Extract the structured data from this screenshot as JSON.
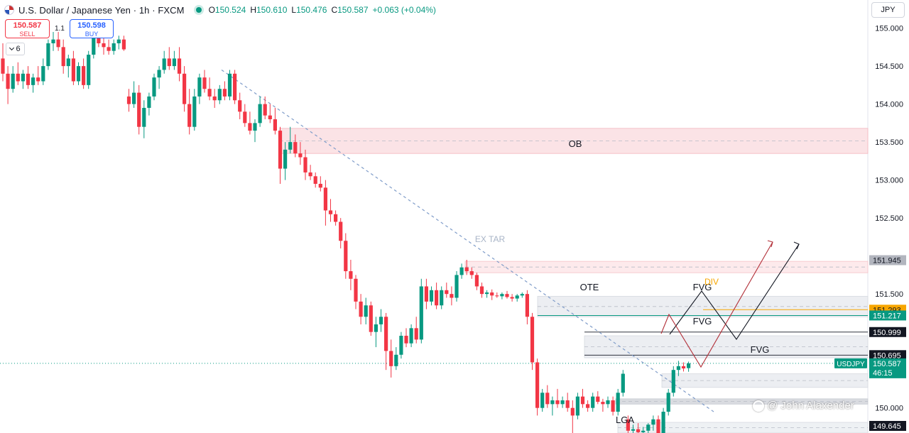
{
  "header": {
    "symbol": "U.S. Dollar / Japanese Yen · 1h · FXCM",
    "open_label": "O",
    "open": "150.524",
    "high_label": "H",
    "high": "150.610",
    "low_label": "L",
    "low": "150.476",
    "close_label": "C",
    "close": "150.587",
    "change": "+0.063 (+0.04%)"
  },
  "trade": {
    "sell_price": "150.587",
    "sell_label": "SELL",
    "buy_price": "150.598",
    "buy_label": "BUY",
    "spread": "1.1"
  },
  "indicators_count": "6",
  "currency": "JPY",
  "watermark": "@ John Alaxender",
  "colors": {
    "up": "#089981",
    "down": "#f23645",
    "trendline": "#7f9cc9",
    "ob_zone": "#fbe3e6",
    "fvg_zone": "#eceef2",
    "price_current": "#089981"
  },
  "chart_data": {
    "type": "candlestick",
    "title": "U.S. Dollar / Japanese Yen · 1h · FXCM",
    "ylim": [
      149.67,
      155.37
    ],
    "y_ticks": [
      "155.000",
      "154.500",
      "154.000",
      "153.500",
      "153.000",
      "152.500",
      "151.500",
      "150.000"
    ],
    "candles": [
      [
        154.6,
        154.8,
        154.3,
        154.4
      ],
      [
        154.4,
        154.5,
        154.0,
        154.2
      ],
      [
        154.2,
        154.5,
        154.15,
        154.4
      ],
      [
        154.4,
        154.55,
        154.25,
        154.3
      ],
      [
        154.3,
        154.45,
        154.2,
        154.4
      ],
      [
        154.4,
        154.5,
        154.2,
        154.25
      ],
      [
        154.25,
        154.4,
        154.15,
        154.35
      ],
      [
        154.35,
        154.5,
        154.25,
        154.3
      ],
      [
        154.3,
        154.6,
        154.25,
        154.5
      ],
      [
        154.5,
        154.85,
        154.45,
        154.8
      ],
      [
        154.8,
        154.95,
        154.7,
        154.85
      ],
      [
        154.85,
        154.95,
        154.7,
        154.75
      ],
      [
        154.75,
        154.85,
        154.4,
        154.5
      ],
      [
        154.5,
        154.65,
        154.35,
        154.6
      ],
      [
        154.6,
        154.7,
        154.25,
        154.3
      ],
      [
        154.3,
        154.55,
        154.25,
        154.5
      ],
      [
        154.5,
        154.6,
        154.2,
        154.25
      ],
      [
        154.25,
        154.7,
        154.2,
        154.65
      ],
      [
        154.65,
        155.05,
        154.6,
        154.95
      ],
      [
        154.95,
        155.0,
        154.75,
        154.8
      ],
      [
        154.8,
        154.9,
        154.65,
        154.75
      ],
      [
        154.75,
        154.85,
        154.65,
        154.7
      ],
      [
        154.7,
        154.85,
        154.65,
        154.8
      ],
      [
        154.8,
        154.9,
        154.72,
        154.85
      ],
      [
        154.85,
        154.9,
        154.7,
        154.72
      ],
      [
        154.1,
        154.2,
        153.9,
        154.0
      ],
      [
        154.0,
        154.3,
        153.95,
        154.15
      ],
      [
        154.15,
        154.25,
        153.6,
        153.7
      ],
      [
        153.7,
        154.05,
        153.55,
        153.95
      ],
      [
        153.95,
        154.15,
        153.85,
        154.1
      ],
      [
        154.1,
        154.4,
        154.05,
        154.35
      ],
      [
        154.35,
        154.5,
        154.2,
        154.45
      ],
      [
        154.45,
        154.7,
        154.4,
        154.6
      ],
      [
        154.6,
        154.75,
        154.45,
        154.5
      ],
      [
        154.5,
        154.7,
        154.45,
        154.6
      ],
      [
        154.6,
        154.75,
        154.3,
        154.4
      ],
      [
        154.4,
        154.5,
        153.9,
        154.0
      ],
      [
        154.0,
        154.2,
        153.6,
        153.7
      ],
      [
        153.7,
        154.2,
        153.65,
        154.1
      ],
      [
        154.1,
        154.4,
        154.0,
        154.35
      ],
      [
        154.35,
        154.45,
        154.15,
        154.2
      ],
      [
        154.2,
        154.35,
        154.05,
        154.1
      ],
      [
        154.1,
        154.2,
        153.95,
        154.05
      ],
      [
        154.05,
        154.25,
        154.0,
        154.2
      ],
      [
        154.2,
        154.3,
        154.05,
        154.1
      ],
      [
        154.1,
        154.45,
        154.05,
        154.4
      ],
      [
        154.4,
        154.45,
        154.0,
        154.05
      ],
      [
        154.05,
        154.15,
        153.8,
        153.9
      ],
      [
        153.9,
        154.0,
        153.7,
        153.75
      ],
      [
        153.75,
        153.9,
        153.6,
        153.65
      ],
      [
        153.65,
        153.8,
        153.5,
        153.75
      ],
      [
        153.75,
        154.1,
        153.7,
        154.0
      ],
      [
        154.0,
        154.1,
        153.8,
        153.85
      ],
      [
        153.85,
        154.0,
        153.75,
        153.8
      ],
      [
        153.8,
        153.95,
        153.6,
        153.65
      ],
      [
        153.65,
        153.7,
        152.95,
        153.15
      ],
      [
        153.15,
        153.5,
        153.0,
        153.4
      ],
      [
        153.4,
        153.7,
        153.35,
        153.5
      ],
      [
        153.5,
        153.6,
        153.3,
        153.35
      ],
      [
        153.35,
        153.5,
        153.2,
        153.3
      ],
      [
        153.3,
        153.4,
        153.0,
        153.1
      ],
      [
        153.1,
        153.2,
        153.0,
        153.05
      ],
      [
        153.05,
        153.1,
        152.9,
        152.95
      ],
      [
        152.95,
        153.05,
        152.85,
        152.9
      ],
      [
        152.9,
        153.0,
        152.4,
        152.6
      ],
      [
        152.6,
        152.75,
        152.45,
        152.55
      ],
      [
        152.55,
        152.6,
        152.4,
        152.45
      ],
      [
        152.45,
        152.5,
        152.1,
        152.2
      ],
      [
        152.2,
        152.3,
        151.7,
        151.8
      ],
      [
        151.8,
        151.95,
        151.55,
        151.7
      ],
      [
        151.7,
        151.75,
        151.3,
        151.4
      ],
      [
        151.4,
        151.5,
        151.1,
        151.2
      ],
      [
        151.2,
        151.45,
        151.1,
        151.35
      ],
      [
        151.35,
        151.4,
        150.95,
        151.0
      ],
      [
        151.0,
        151.2,
        150.8,
        151.1
      ],
      [
        151.1,
        151.3,
        151.0,
        151.2
      ],
      [
        151.2,
        151.25,
        150.5,
        150.75
      ],
      [
        150.75,
        150.9,
        150.4,
        150.55
      ],
      [
        150.55,
        150.8,
        150.5,
        150.7
      ],
      [
        150.7,
        151.0,
        150.65,
        150.95
      ],
      [
        150.95,
        151.05,
        150.8,
        150.85
      ],
      [
        150.85,
        151.1,
        150.8,
        151.05
      ],
      [
        151.05,
        151.2,
        150.85,
        150.9
      ],
      [
        150.9,
        151.7,
        150.85,
        151.6
      ],
      [
        151.6,
        151.7,
        151.3,
        151.4
      ],
      [
        151.4,
        151.6,
        151.35,
        151.55
      ],
      [
        151.55,
        151.65,
        151.3,
        151.35
      ],
      [
        151.35,
        151.6,
        151.3,
        151.55
      ],
      [
        151.55,
        151.65,
        151.45,
        151.5
      ],
      [
        151.5,
        151.6,
        151.35,
        151.45
      ],
      [
        151.45,
        151.8,
        151.4,
        151.75
      ],
      [
        151.75,
        151.9,
        151.7,
        151.85
      ],
      [
        151.85,
        151.95,
        151.75,
        151.8
      ],
      [
        151.8,
        151.85,
        151.7,
        151.75
      ],
      [
        151.75,
        151.78,
        151.55,
        151.6
      ],
      [
        151.6,
        151.65,
        151.45,
        151.5
      ],
      [
        151.5,
        151.55,
        151.45,
        151.52
      ],
      [
        151.52,
        151.56,
        151.42,
        151.48
      ],
      [
        151.48,
        151.52,
        151.45,
        151.47
      ],
      [
        151.47,
        151.52,
        151.43,
        151.5
      ],
      [
        151.5,
        151.54,
        151.44,
        151.46
      ],
      [
        151.46,
        151.5,
        151.4,
        151.44
      ],
      [
        151.44,
        151.5,
        151.4,
        151.48
      ],
      [
        151.48,
        151.52,
        151.45,
        151.5
      ],
      [
        151.5,
        151.55,
        151.1,
        151.2
      ],
      [
        151.2,
        151.25,
        150.5,
        150.6
      ],
      [
        150.6,
        150.65,
        149.9,
        150.0
      ],
      [
        150.0,
        150.25,
        149.95,
        150.2
      ],
      [
        150.2,
        150.3,
        150.0,
        150.05
      ],
      [
        150.05,
        150.15,
        149.9,
        150.1
      ],
      [
        150.1,
        150.25,
        150.0,
        150.05
      ],
      [
        150.05,
        150.15,
        150.0,
        150.1
      ],
      [
        150.1,
        150.2,
        149.95,
        150.0
      ],
      [
        150.0,
        150.1,
        149.6,
        149.9
      ],
      [
        149.9,
        150.2,
        149.85,
        150.15
      ],
      [
        150.15,
        150.25,
        150.0,
        150.05
      ],
      [
        150.05,
        150.1,
        149.95,
        150.0
      ],
      [
        150.0,
        150.2,
        149.95,
        150.15
      ],
      [
        150.15,
        150.22,
        150.05,
        150.08
      ],
      [
        150.08,
        150.12,
        149.95,
        150.05
      ],
      [
        150.05,
        150.15,
        150.0,
        150.1
      ],
      [
        150.1,
        150.15,
        149.9,
        149.95
      ],
      [
        149.95,
        150.25,
        149.9,
        150.2
      ],
      [
        150.2,
        150.5,
        150.15,
        150.45
      ],
      [
        149.85,
        149.9,
        149.62,
        149.7
      ],
      [
        149.7,
        149.78,
        149.6,
        149.72
      ],
      [
        149.72,
        149.8,
        149.65,
        149.68
      ],
      [
        149.68,
        149.75,
        149.6,
        149.7
      ],
      [
        149.7,
        149.8,
        149.65,
        149.78
      ],
      [
        149.78,
        149.9,
        149.7,
        149.85
      ],
      [
        149.85,
        149.9,
        149.6,
        149.65
      ],
      [
        149.65,
        150.0,
        149.6,
        149.95
      ],
      [
        149.95,
        150.25,
        149.9,
        150.2
      ],
      [
        150.2,
        150.55,
        150.15,
        150.5
      ],
      [
        150.5,
        150.62,
        150.42,
        150.55
      ],
      [
        150.55,
        150.6,
        150.48,
        150.52
      ],
      [
        150.524,
        150.61,
        150.476,
        150.587
      ]
    ],
    "zones": [
      {
        "label": "OB",
        "top": 153.68,
        "bottom": 153.35
      },
      {
        "label": "",
        "top": 151.93,
        "bottom": 151.78
      },
      {
        "label": "OTE",
        "top": 151.47,
        "bottom": 151.2
      },
      {
        "label": "FVG",
        "top": 150.95,
        "bottom": 150.66
      },
      {
        "label": "FVG",
        "top": 150.45,
        "bottom": 150.27
      },
      {
        "label": "",
        "top": 150.12,
        "bottom": 150.05
      },
      {
        "label": "",
        "top": 149.81,
        "bottom": 149.67
      }
    ],
    "labels": [
      "OB",
      "EX TAR",
      "OTE",
      "FVG",
      "FVG",
      "FVG",
      "LGA",
      "DIV"
    ],
    "price_labels": [
      {
        "value": "151.945",
        "kind": "gray"
      },
      {
        "value": "151.293",
        "kind": "orange"
      },
      {
        "value": "151.217",
        "kind": "green"
      },
      {
        "value": "150.999",
        "kind": "dark"
      },
      {
        "value": "150.695",
        "kind": "dark"
      },
      {
        "value": "150.587",
        "kind": "current",
        "symbol": "USDJPY",
        "countdown": "46:15"
      },
      {
        "value": "149.645",
        "kind": "dark"
      }
    ]
  }
}
